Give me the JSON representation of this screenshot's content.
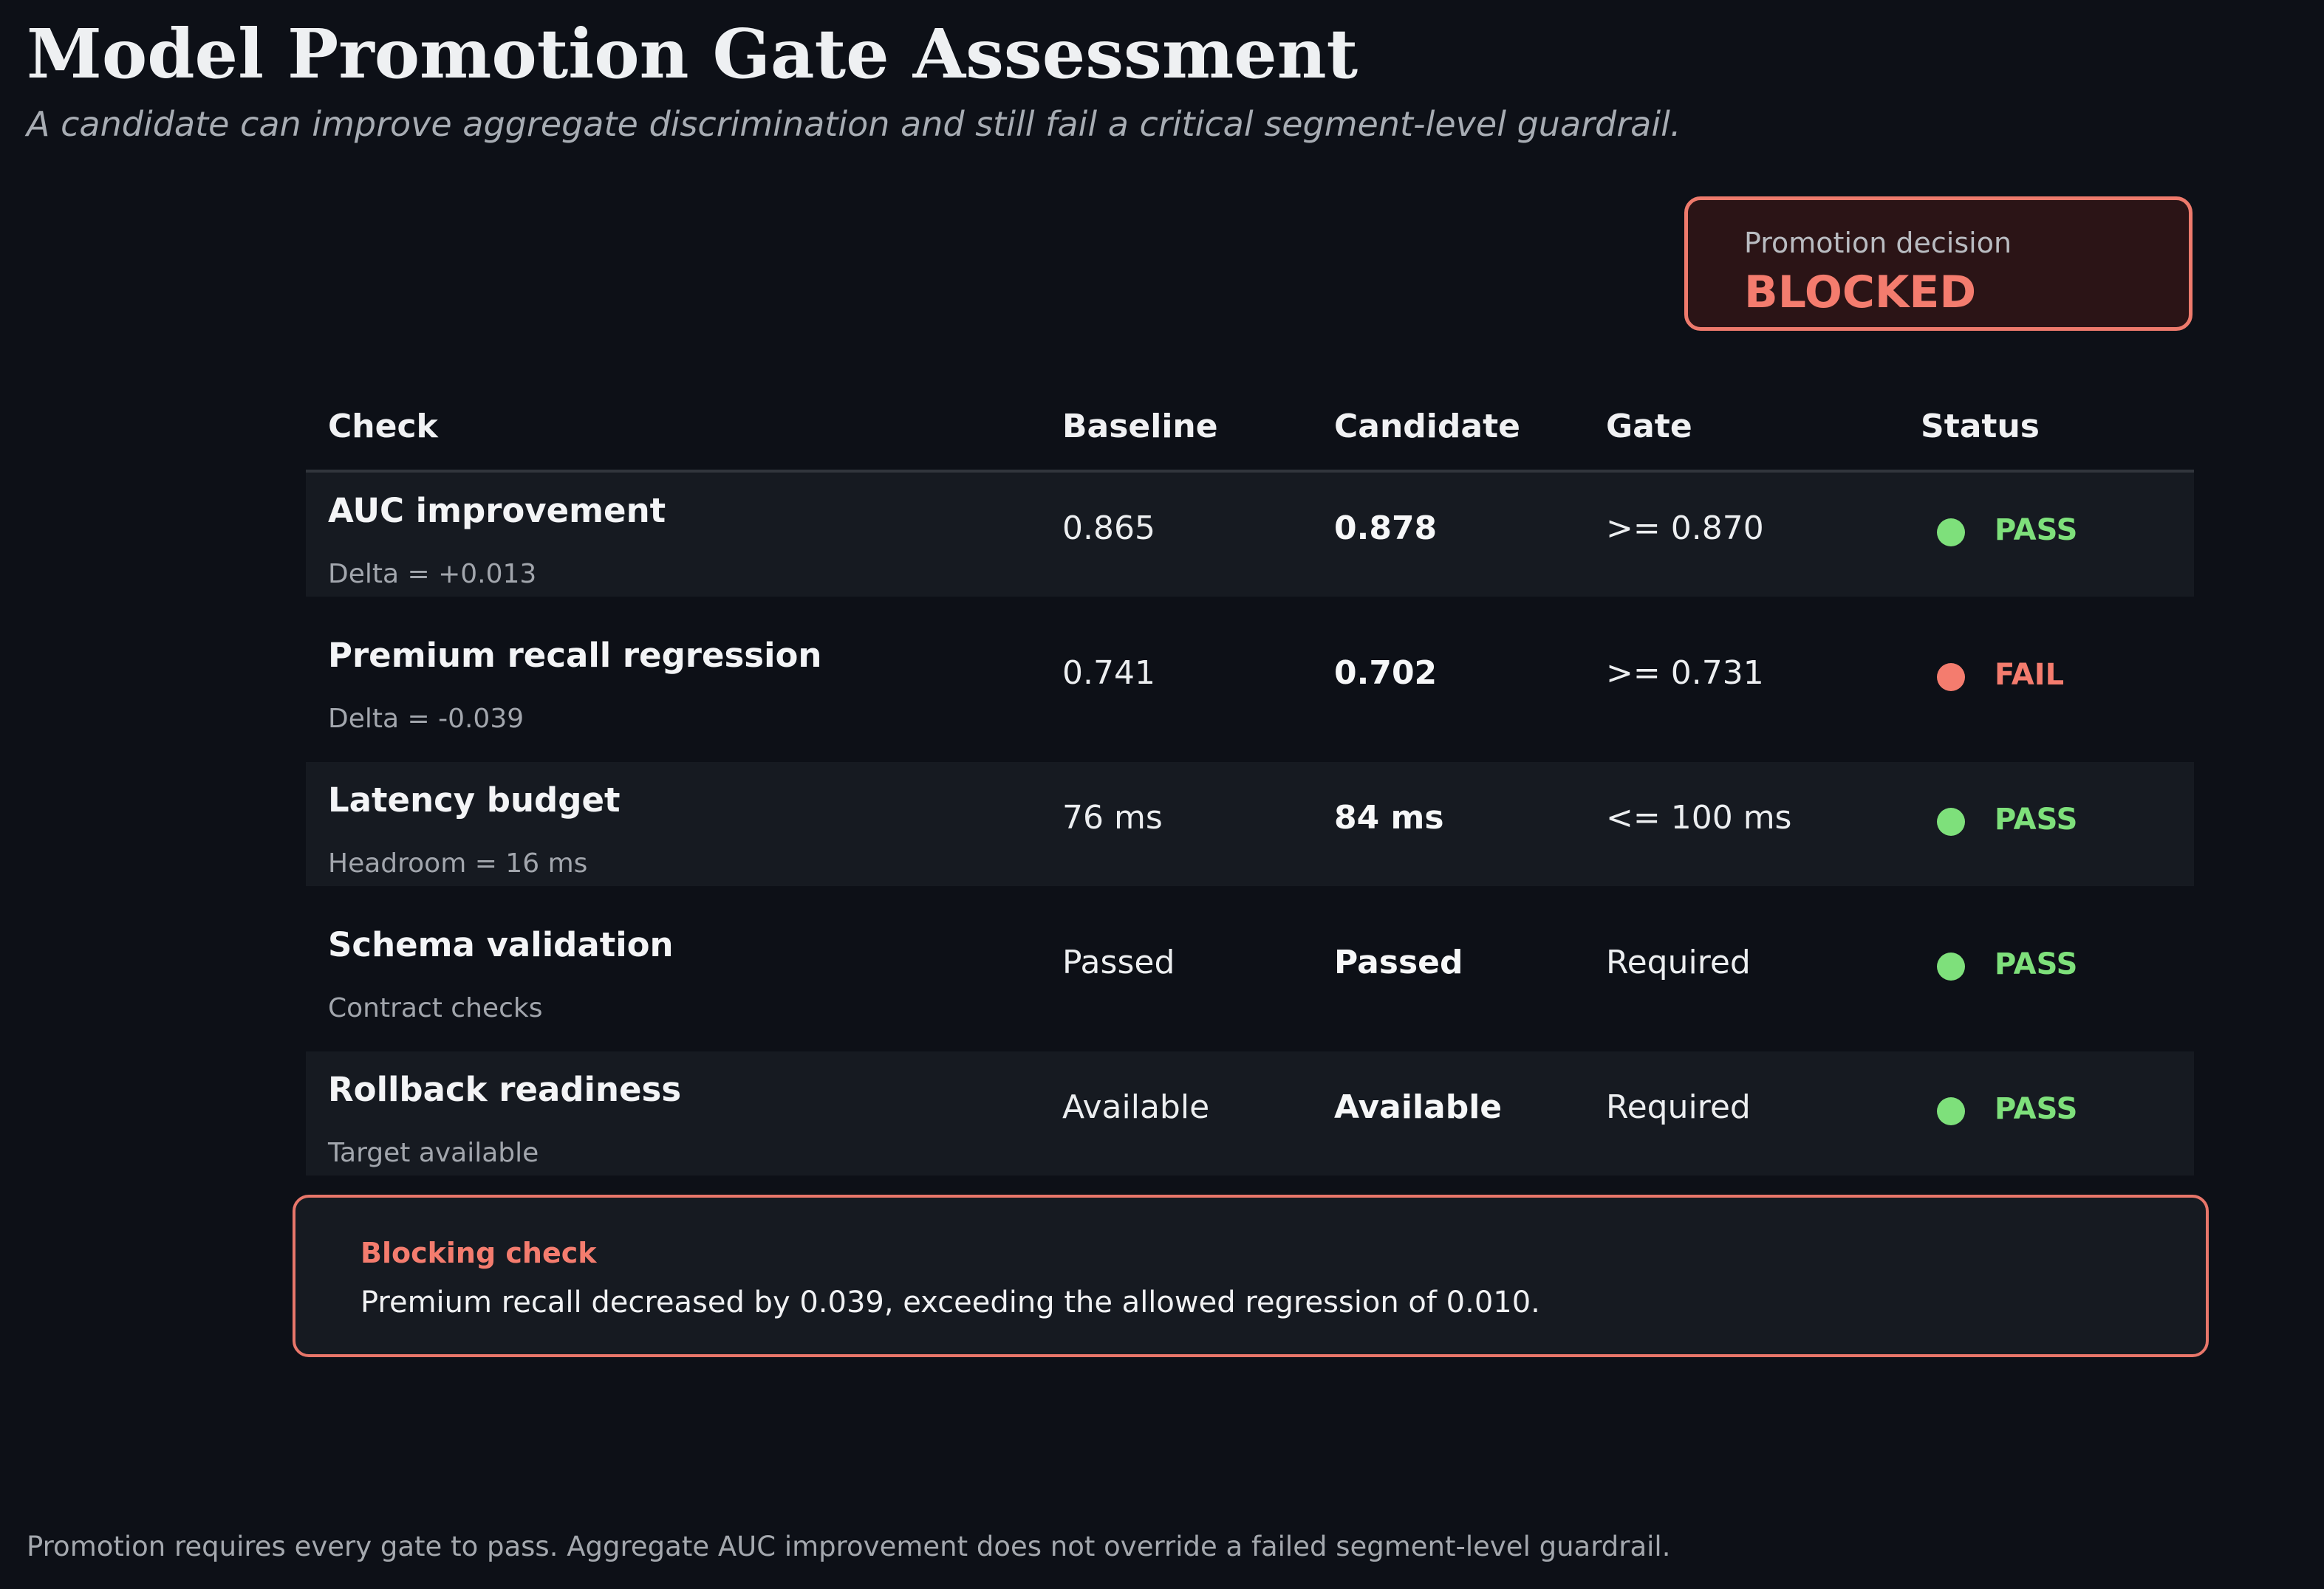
{
  "header": {
    "title": "Model Promotion Gate Assessment",
    "subtitle": "A candidate can improve aggregate discrimination and still fail a critical segment-level guardrail."
  },
  "decision": {
    "label": "Promotion decision",
    "value": "BLOCKED",
    "color": "#f47c6e"
  },
  "table": {
    "columns": [
      "Check",
      "Baseline",
      "Candidate",
      "Gate",
      "Status"
    ],
    "rows": [
      {
        "check": "AUC improvement",
        "detail": "Delta = +0.013",
        "baseline": "0.865",
        "candidate": "0.878",
        "gate": ">= 0.870",
        "status": "PASS",
        "status_color": "#7ee07b"
      },
      {
        "check": "Premium recall regression",
        "detail": "Delta = -0.039",
        "baseline": "0.741",
        "candidate": "0.702",
        "gate": ">= 0.731",
        "status": "FAIL",
        "status_color": "#f47c6e"
      },
      {
        "check": "Latency budget",
        "detail": "Headroom = 16 ms",
        "baseline": "76 ms",
        "candidate": "84 ms",
        "gate": "<= 100 ms",
        "status": "PASS",
        "status_color": "#7ee07b"
      },
      {
        "check": "Schema validation",
        "detail": "Contract checks",
        "baseline": "Passed",
        "candidate": "Passed",
        "gate": "Required",
        "status": "PASS",
        "status_color": "#7ee07b"
      },
      {
        "check": "Rollback readiness",
        "detail": "Target available",
        "baseline": "Available",
        "candidate": "Available",
        "gate": "Required",
        "status": "PASS",
        "status_color": "#7ee07b"
      }
    ]
  },
  "blocking": {
    "title": "Blocking check",
    "text": "Premium recall decreased by 0.039, exceeding the allowed regression of 0.010."
  },
  "footnote": "Promotion requires every gate to pass. Aggregate AUC improvement does not override a failed segment-level guardrail."
}
